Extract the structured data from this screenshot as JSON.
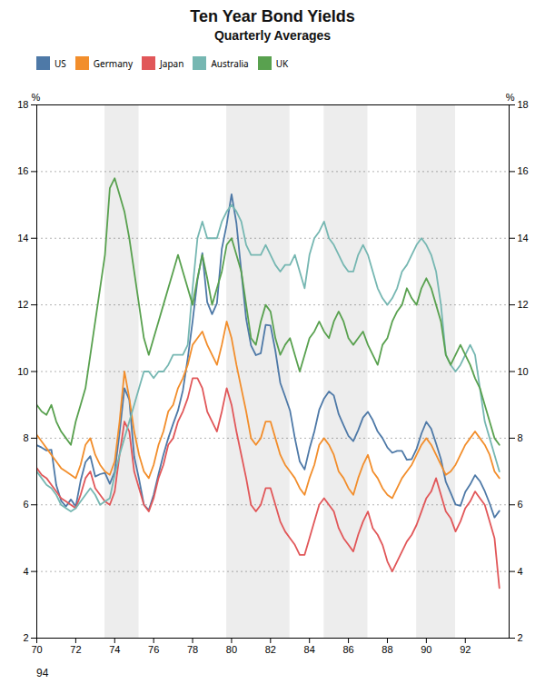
{
  "chart_data": {
    "type": "line",
    "title": "Ten Year Bond Yields",
    "subtitle": "Quarterly Averages",
    "ylabel": "%",
    "annotations": [
      "94"
    ],
    "x": [
      1970,
      1970.25,
      1970.5,
      1970.75,
      1971,
      1971.25,
      1971.5,
      1971.75,
      1972,
      1972.25,
      1972.5,
      1972.75,
      1973,
      1973.25,
      1973.5,
      1973.75,
      1974,
      1974.25,
      1974.5,
      1974.75,
      1975,
      1975.25,
      1975.5,
      1975.75,
      1976,
      1976.25,
      1976.5,
      1976.75,
      1977,
      1977.25,
      1977.5,
      1977.75,
      1978,
      1978.25,
      1978.5,
      1978.75,
      1979,
      1979.25,
      1979.5,
      1979.75,
      1980,
      1980.25,
      1980.5,
      1980.75,
      1981,
      1981.25,
      1981.5,
      1981.75,
      1982,
      1982.25,
      1982.5,
      1982.75,
      1983,
      1983.25,
      1983.5,
      1983.75,
      1984,
      1984.25,
      1984.5,
      1984.75,
      1985,
      1985.25,
      1985.5,
      1985.75,
      1986,
      1986.25,
      1986.5,
      1986.75,
      1987,
      1987.25,
      1987.5,
      1987.75,
      1988,
      1988.25,
      1988.5,
      1988.75,
      1989,
      1989.25,
      1989.5,
      1989.75,
      1990,
      1990.25,
      1990.5,
      1990.75,
      1991,
      1991.25,
      1991.5,
      1991.75,
      1992,
      1992.25,
      1992.5,
      1992.75,
      1993,
      1993.25,
      1993.5,
      1993.75
    ],
    "xlim": [
      1970,
      1994.25
    ],
    "xticks": [
      {
        "value": 1970,
        "label": "70"
      },
      {
        "value": 1972,
        "label": "72"
      },
      {
        "value": 1974,
        "label": "74"
      },
      {
        "value": 1976,
        "label": "76"
      },
      {
        "value": 1978,
        "label": "78"
      },
      {
        "value": 1980,
        "label": "80"
      },
      {
        "value": 1982,
        "label": "82"
      },
      {
        "value": 1984,
        "label": "84"
      },
      {
        "value": 1986,
        "label": "86"
      },
      {
        "value": 1988,
        "label": "88"
      },
      {
        "value": 1990,
        "label": "90"
      },
      {
        "value": 1992,
        "label": "92"
      }
    ],
    "ylim": [
      2,
      18
    ],
    "yticks": [
      2,
      4,
      6,
      8,
      10,
      12,
      14,
      16,
      18
    ],
    "grid": true,
    "legend": "upper left",
    "shaded_regions": [
      [
        1973.5,
        1975.25
      ],
      [
        1979.75,
        1983.0
      ],
      [
        1984.75,
        1987.0
      ],
      [
        1989.5,
        1991.5
      ]
    ],
    "series": [
      {
        "name": "US",
        "values": [
          7.79,
          7.72,
          7.63,
          7.65,
          6.59,
          6.12,
          5.95,
          6.16,
          5.95,
          6.72,
          7.28,
          7.46,
          6.85,
          6.92,
          6.96,
          6.63,
          6.99,
          8.16,
          9.5,
          9.15,
          7.45,
          6.77,
          6.0,
          5.84,
          6.3,
          6.92,
          7.5,
          8.0,
          8.43,
          8.83,
          9.43,
          10.39,
          11.51,
          12.75,
          13.55,
          12.08,
          11.72,
          12.05,
          13.68,
          14.41,
          15.32,
          14.45,
          13.0,
          11.58,
          10.78,
          10.49,
          10.55,
          11.4,
          11.38,
          10.62,
          9.66,
          9.25,
          8.83,
          8.0,
          7.3,
          7.06,
          7.68,
          8.2,
          8.85,
          9.19,
          9.4,
          9.28,
          8.72,
          8.39,
          8.07,
          7.91,
          8.24,
          8.62,
          8.79,
          8.54,
          8.2,
          8.0,
          7.72,
          7.56,
          7.62,
          7.62,
          7.35,
          7.37,
          7.68,
          8.14,
          8.49,
          8.28,
          7.84,
          7.37,
          6.69,
          6.36,
          6.01,
          5.97,
          6.39,
          6.61,
          6.89,
          6.71,
          6.41,
          6.04,
          5.62,
          5.82
        ]
      },
      {
        "name": "Germany",
        "values": [
          8.1,
          7.9,
          7.7,
          7.5,
          7.3,
          7.1,
          7.0,
          6.9,
          6.8,
          7.2,
          7.8,
          8.0,
          7.5,
          7.2,
          7.0,
          6.9,
          7.3,
          8.5,
          10.0,
          9.2,
          8.2,
          7.5,
          7.0,
          6.8,
          7.2,
          7.8,
          8.2,
          8.8,
          9.0,
          9.5,
          9.8,
          10.2,
          10.8,
          11.0,
          11.2,
          10.8,
          10.5,
          10.2,
          10.8,
          11.5,
          11.0,
          10.2,
          9.5,
          8.8,
          8.0,
          7.8,
          8.0,
          8.5,
          8.5,
          8.0,
          7.5,
          7.2,
          7.0,
          6.8,
          6.5,
          6.3,
          6.8,
          7.2,
          7.8,
          8.0,
          7.8,
          7.5,
          7.0,
          6.8,
          6.5,
          6.3,
          6.8,
          7.2,
          7.5,
          7.0,
          6.8,
          6.5,
          6.3,
          6.2,
          6.5,
          6.8,
          7.0,
          7.2,
          7.5,
          7.8,
          8.0,
          7.8,
          7.5,
          7.2,
          6.9,
          7.0,
          7.2,
          7.5,
          7.8,
          8.0,
          8.2,
          8.0,
          7.8,
          7.5,
          7.0,
          6.8
        ]
      },
      {
        "name": "Japan",
        "values": [
          7.1,
          6.9,
          6.8,
          6.6,
          6.4,
          6.2,
          6.1,
          6.0,
          5.9,
          6.3,
          6.8,
          7.0,
          6.5,
          6.3,
          6.1,
          6.0,
          6.4,
          7.5,
          8.5,
          8.2,
          7.0,
          6.5,
          6.0,
          5.8,
          6.2,
          6.8,
          7.2,
          7.8,
          8.0,
          8.5,
          8.8,
          9.2,
          9.8,
          9.8,
          9.5,
          8.8,
          8.5,
          8.2,
          8.8,
          9.5,
          9.0,
          8.2,
          7.5,
          6.8,
          6.0,
          5.8,
          6.0,
          6.5,
          6.5,
          6.0,
          5.5,
          5.2,
          5.0,
          4.8,
          4.5,
          4.5,
          5.0,
          5.5,
          6.0,
          6.2,
          6.0,
          5.8,
          5.3,
          5.0,
          4.8,
          4.6,
          5.1,
          5.5,
          5.8,
          5.3,
          5.1,
          4.8,
          4.3,
          4.0,
          4.3,
          4.6,
          4.9,
          5.1,
          5.4,
          5.8,
          6.2,
          6.4,
          6.8,
          6.3,
          5.8,
          5.6,
          5.2,
          5.5,
          5.9,
          6.1,
          6.4,
          6.2,
          6.0,
          5.5,
          5.0,
          3.5
        ]
      },
      {
        "name": "Australia",
        "values": [
          7.0,
          6.8,
          6.6,
          6.5,
          6.3,
          6.0,
          5.9,
          5.8,
          5.9,
          6.1,
          6.3,
          6.5,
          6.3,
          6.0,
          6.1,
          6.2,
          6.9,
          7.5,
          8.0,
          8.5,
          9.0,
          9.5,
          10.0,
          10.0,
          9.8,
          10.0,
          10.0,
          10.2,
          10.5,
          10.5,
          10.5,
          10.8,
          12.5,
          14.0,
          14.5,
          14.0,
          14.0,
          14.0,
          14.5,
          14.8,
          15.0,
          14.8,
          14.5,
          13.8,
          13.5,
          13.5,
          13.5,
          13.8,
          13.5,
          13.2,
          13.0,
          13.2,
          13.2,
          13.5,
          13.0,
          12.5,
          13.5,
          14.0,
          14.2,
          14.5,
          14.0,
          13.8,
          13.5,
          13.2,
          13.0,
          13.0,
          13.5,
          13.8,
          13.5,
          13.0,
          12.5,
          12.2,
          12.0,
          12.2,
          12.5,
          13.0,
          13.2,
          13.5,
          13.8,
          14.0,
          13.8,
          13.5,
          13.0,
          12.0,
          10.5,
          10.2,
          10.0,
          10.2,
          10.5,
          10.8,
          10.5,
          9.5,
          8.5,
          8.0,
          7.5,
          7.0
        ]
      },
      {
        "name": "UK",
        "values": [
          9.0,
          8.8,
          8.7,
          9.0,
          8.5,
          8.2,
          8.0,
          7.8,
          8.5,
          9.0,
          9.5,
          10.5,
          11.5,
          12.5,
          13.5,
          15.5,
          15.8,
          15.3,
          14.8,
          14.0,
          13.0,
          12.0,
          11.0,
          10.5,
          11.0,
          11.5,
          12.0,
          12.5,
          13.0,
          13.5,
          13.0,
          12.5,
          12.0,
          12.8,
          13.5,
          12.8,
          12.0,
          12.5,
          13.0,
          13.8,
          14.0,
          13.5,
          13.0,
          12.0,
          11.0,
          10.8,
          11.5,
          12.0,
          11.8,
          11.0,
          10.5,
          10.8,
          11.0,
          10.5,
          10.0,
          10.5,
          11.0,
          11.2,
          11.5,
          11.2,
          11.0,
          11.5,
          11.8,
          11.5,
          11.0,
          10.8,
          11.0,
          11.2,
          10.8,
          10.5,
          10.2,
          10.8,
          11.0,
          11.5,
          11.8,
          12.0,
          12.5,
          12.2,
          12.0,
          12.5,
          12.8,
          12.5,
          12.0,
          11.5,
          10.5,
          10.2,
          10.5,
          10.8,
          10.5,
          10.2,
          9.8,
          9.5,
          9.0,
          8.5,
          8.0,
          7.8
        ]
      }
    ]
  }
}
